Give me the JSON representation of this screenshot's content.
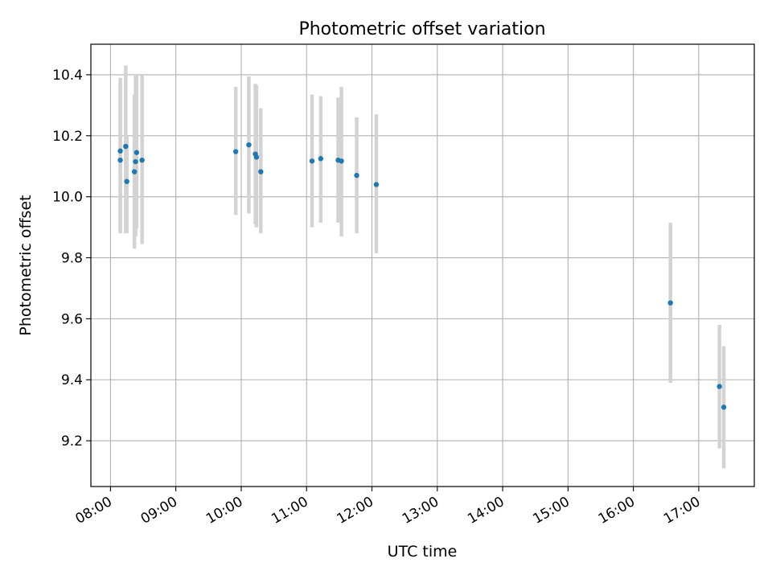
{
  "chart_data": {
    "type": "scatter",
    "title": "Photometric offset variation",
    "xlabel": "UTC time",
    "ylabel": "Photometric offset",
    "xlim_hours": [
      7.7,
      17.85
    ],
    "ylim": [
      9.05,
      10.5
    ],
    "x_ticks": [
      "08:00",
      "09:00",
      "10:00",
      "11:00",
      "12:00",
      "13:00",
      "14:00",
      "15:00",
      "16:00",
      "17:00"
    ],
    "y_ticks": [
      9.2,
      9.4,
      9.6,
      9.8,
      10.0,
      10.2,
      10.4
    ],
    "grid": true,
    "marker_color": "#1f77b4",
    "errorbar_color": "#d3d3d3",
    "points": [
      {
        "time": "08:09",
        "y": 10.15,
        "err_low": 9.88,
        "err_high": 10.39
      },
      {
        "time": "08:09",
        "y": 10.12,
        "err_low": 9.88,
        "err_high": 10.37
      },
      {
        "time": "08:14",
        "y": 10.165,
        "err_low": 9.88,
        "err_high": 10.43
      },
      {
        "time": "08:15",
        "y": 10.05,
        "err_low": 9.88,
        "err_high": 10.2
      },
      {
        "time": "08:22",
        "y": 10.082,
        "err_low": 9.83,
        "err_high": 10.335
      },
      {
        "time": "08:23",
        "y": 10.115,
        "err_low": 9.87,
        "err_high": 10.4
      },
      {
        "time": "08:24",
        "y": 10.145,
        "err_low": 9.895,
        "err_high": 10.4
      },
      {
        "time": "08:29",
        "y": 10.12,
        "err_low": 9.845,
        "err_high": 10.4
      },
      {
        "time": "09:55",
        "y": 10.148,
        "err_low": 9.94,
        "err_high": 10.36
      },
      {
        "time": "10:07",
        "y": 10.17,
        "err_low": 9.945,
        "err_high": 10.395
      },
      {
        "time": "10:13",
        "y": 10.14,
        "err_low": 9.91,
        "err_high": 10.37
      },
      {
        "time": "10:14",
        "y": 10.13,
        "err_low": 9.9,
        "err_high": 10.365
      },
      {
        "time": "10:18",
        "y": 10.082,
        "err_low": 9.88,
        "err_high": 10.29
      },
      {
        "time": "11:05",
        "y": 10.117,
        "err_low": 9.9,
        "err_high": 10.335
      },
      {
        "time": "11:13",
        "y": 10.125,
        "err_low": 9.915,
        "err_high": 10.33
      },
      {
        "time": "11:29",
        "y": 10.12,
        "err_low": 9.915,
        "err_high": 10.325
      },
      {
        "time": "11:32",
        "y": 10.117,
        "err_low": 9.87,
        "err_high": 10.36
      },
      {
        "time": "11:46",
        "y": 10.07,
        "err_low": 9.88,
        "err_high": 10.26
      },
      {
        "time": "12:04",
        "y": 10.04,
        "err_low": 9.815,
        "err_high": 10.27
      },
      {
        "time": "16:34",
        "y": 9.652,
        "err_low": 9.39,
        "err_high": 9.915
      },
      {
        "time": "17:19",
        "y": 9.378,
        "err_low": 9.175,
        "err_high": 9.58
      },
      {
        "time": "17:23",
        "y": 9.31,
        "err_low": 9.11,
        "err_high": 9.51
      }
    ]
  }
}
